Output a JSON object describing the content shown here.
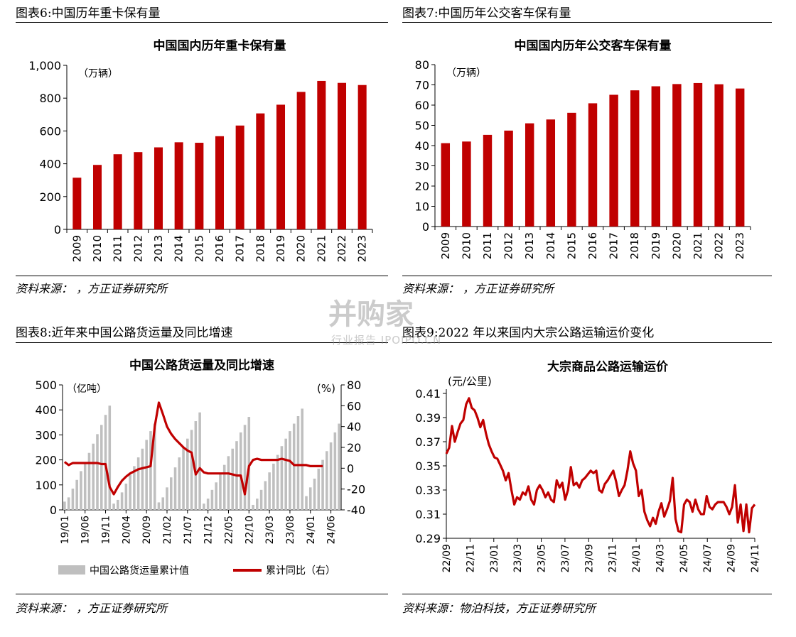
{
  "panels": [
    {
      "figure_title": "图表6:中国历年重卡保有量",
      "source": "资料来源：        ，方正证券研究所"
    },
    {
      "figure_title": "图表7:中国历年公交客车保有量",
      "source": "资料来源：        ，方正证券研究所"
    },
    {
      "figure_title": "图表8:近年来中国公路货运量及同比增速",
      "source": "资料来源：        ，方正证券研究所"
    },
    {
      "figure_title": "图表9:2022 年以来国内大宗公路运输运价变化",
      "source": "资料来源：物泊科技，方正证券研究所"
    }
  ],
  "watermark": {
    "main": "并购家",
    "sub": "行业报告 IPOIPO.CN"
  },
  "colors": {
    "red": "#C00000",
    "gray": "#BFBFBF",
    "axis": "#000000"
  },
  "chart_data": [
    {
      "type": "bar",
      "title": "中国国内历年重卡保有量",
      "unit": "（万辆）",
      "categories": [
        "2009",
        "2010",
        "2011",
        "2012",
        "2013",
        "2014",
        "2015",
        "2016",
        "2017",
        "2018",
        "2019",
        "2020",
        "2021",
        "2022",
        "2023"
      ],
      "values": [
        315,
        393,
        458,
        471,
        500,
        531,
        528,
        568,
        633,
        707,
        760,
        838,
        905,
        893,
        880
      ],
      "ylim": [
        0,
        1000
      ],
      "yticks": [
        0,
        200,
        400,
        600,
        800,
        1000
      ],
      "ytick_labels": [
        "0",
        "200",
        "400",
        "600",
        "800",
        "1,000"
      ],
      "color": "#C00000"
    },
    {
      "type": "bar",
      "title": "中国国内历年公交客车保有量",
      "unit": "（万辆）",
      "categories": [
        "2009",
        "2010",
        "2011",
        "2012",
        "2013",
        "2014",
        "2015",
        "2016",
        "2017",
        "2018",
        "2019",
        "2020",
        "2021",
        "2022",
        "2023"
      ],
      "values": [
        41.2,
        42.0,
        45.3,
        47.4,
        51.0,
        52.9,
        56.2,
        60.9,
        65.1,
        67.3,
        69.3,
        70.4,
        70.9,
        70.3,
        68.2
      ],
      "ylim": [
        0,
        80
      ],
      "yticks": [
        0,
        10,
        20,
        30,
        40,
        50,
        60,
        70,
        80
      ],
      "ytick_labels": [
        "0",
        "10",
        "20",
        "30",
        "40",
        "50",
        "60",
        "70",
        "80"
      ],
      "color": "#C00000"
    },
    {
      "type": "bar+line",
      "title": "中国公路货运量及同比增速",
      "left_unit": "（亿吨）",
      "right_unit": "(%)",
      "ylim_left": [
        0,
        500
      ],
      "yticks_left": [
        0,
        100,
        200,
        300,
        400,
        500
      ],
      "ylim_right": [
        -40,
        80
      ],
      "yticks_right": [
        -40,
        -20,
        0,
        20,
        40,
        60,
        80
      ],
      "x_tick_labels": [
        "19/01",
        "19/06",
        "19/11",
        "20/04",
        "20/09",
        "21/02",
        "21/07",
        "21/12",
        "22/05",
        "22/10",
        "23/03",
        "23/08",
        "24/01",
        "24/06"
      ],
      "x_tick_step": 5,
      "series": [
        {
          "name": "中国公路货运量累计值",
          "kind": "bar",
          "color": "#BFBFBF",
          "values": [
            33,
            50,
            85,
            120,
            155,
            190,
            228,
            265,
            303,
            340,
            380,
            417,
            25,
            40,
            70,
            105,
            140,
            175,
            210,
            245,
            280,
            315,
            345,
            30,
            50,
            90,
            130,
            170,
            210,
            250,
            285,
            320,
            355,
            390,
            25,
            45,
            80,
            110,
            145,
            180,
            215,
            245,
            275,
            310,
            340,
            372,
            20,
            45,
            80,
            115,
            150,
            185,
            220,
            255,
            285,
            315,
            345,
            375,
            405,
            55,
            90,
            125,
            165,
            200,
            235,
            270,
            310,
            345
          ]
        },
        {
          "name": "累计同比（右）",
          "kind": "line",
          "axis": "right",
          "color": "#C00000",
          "values": [
            6,
            3,
            5,
            5,
            5,
            5,
            5,
            5,
            5,
            4,
            4,
            -18,
            -25,
            -18,
            -12,
            -8,
            -5,
            -3,
            -1,
            0,
            1,
            2,
            40,
            63,
            52,
            40,
            33,
            28,
            24,
            20,
            17,
            15,
            -6,
            0,
            -4,
            -5,
            -5,
            -5,
            -5,
            -5,
            -5,
            -6,
            -7,
            -7,
            -25,
            2,
            8,
            9,
            8,
            8,
            8,
            8,
            8,
            9,
            8,
            7,
            3,
            3,
            3,
            3,
            2,
            2,
            2,
            2
          ]
        }
      ]
    },
    {
      "type": "line",
      "title": "大宗商品公路运输运价",
      "unit": "(元/公里)",
      "ylim": [
        0.29,
        0.41
      ],
      "yticks": [
        0.29,
        0.31,
        0.33,
        0.35,
        0.37,
        0.39,
        0.41
      ],
      "ytick_labels": [
        "0.29",
        "0.31",
        "0.33",
        "0.35",
        "0.37",
        "0.39",
        "0.41"
      ],
      "x_tick_labels": [
        "22/09",
        "22/11",
        "23/01",
        "23/03",
        "23/05",
        "23/07",
        "23/09",
        "23/11",
        "24/01",
        "24/03",
        "24/05",
        "24/07",
        "24/09",
        "24/11"
      ],
      "color": "#C00000",
      "values": [
        0.36,
        0.365,
        0.383,
        0.37,
        0.378,
        0.385,
        0.388,
        0.401,
        0.406,
        0.398,
        0.396,
        0.39,
        0.382,
        0.388,
        0.377,
        0.368,
        0.362,
        0.357,
        0.356,
        0.351,
        0.346,
        0.338,
        0.344,
        0.33,
        0.318,
        0.324,
        0.322,
        0.328,
        0.326,
        0.333,
        0.322,
        0.318,
        0.33,
        0.334,
        0.33,
        0.324,
        0.328,
        0.322,
        0.32,
        0.338,
        0.332,
        0.336,
        0.322,
        0.33,
        0.349,
        0.334,
        0.336,
        0.332,
        0.338,
        0.34,
        0.343,
        0.346,
        0.344,
        0.346,
        0.33,
        0.328,
        0.335,
        0.338,
        0.342,
        0.346,
        0.337,
        0.325,
        0.33,
        0.334,
        0.346,
        0.362,
        0.352,
        0.346,
        0.325,
        0.33,
        0.312,
        0.305,
        0.3,
        0.307,
        0.302,
        0.312,
        0.319,
        0.308,
        0.314,
        0.321,
        0.34,
        0.306,
        0.296,
        0.295,
        0.318,
        0.322,
        0.32,
        0.312,
        0.322,
        0.314,
        0.31,
        0.31,
        0.325,
        0.316,
        0.314,
        0.318,
        0.32,
        0.32,
        0.32,
        0.316,
        0.31,
        0.316,
        0.334,
        0.303,
        0.318,
        0.296,
        0.318,
        0.295,
        0.315,
        0.318
      ]
    }
  ]
}
